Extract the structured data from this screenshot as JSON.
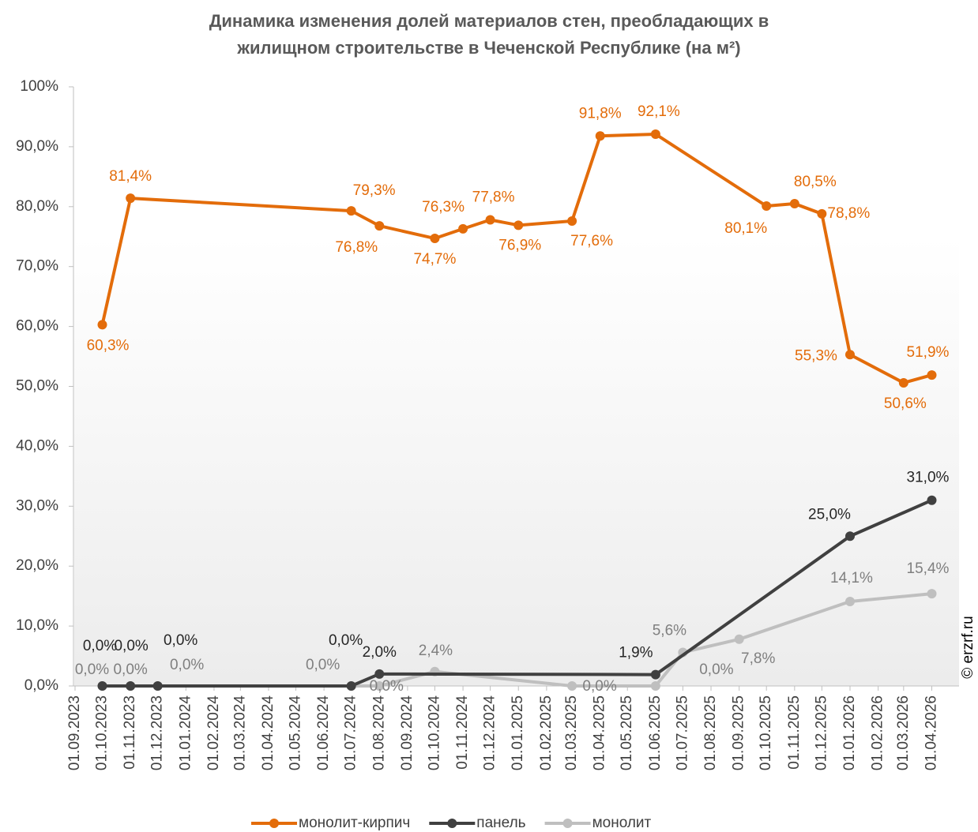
{
  "chart_data": {
    "type": "line",
    "title": "Динамика изменения долей материалов стен, преобладающих в",
    "subtitle": "жилищном строительстве в Чеченской Республике (на м²)",
    "xlim": [
      "01.09.2023",
      "01.05.2026"
    ],
    "xticks": [
      "01.09.2023",
      "01.10.2023",
      "01.11.2023",
      "01.12.2023",
      "01.01.2024",
      "01.02.2024",
      "01.03.2024",
      "01.04.2024",
      "01.05.2024",
      "01.06.2024",
      "01.07.2024",
      "01.08.2024",
      "01.09.2024",
      "01.10.2024",
      "01.11.2024",
      "01.12.2024",
      "01.01.2025",
      "01.02.2025",
      "01.03.2025",
      "01.04.2025",
      "01.05.2025",
      "01.06.2025",
      "01.07.2025",
      "01.08.2025",
      "01.09.2025",
      "01.10.2025",
      "01.11.2025",
      "01.12.2025",
      "01.01.2026",
      "01.02.2026",
      "01.03.2026",
      "01.04.2026"
    ],
    "ylim": [
      0,
      100
    ],
    "yticks": [
      {
        "value": 0,
        "label": "0,0%"
      },
      {
        "value": 10,
        "label": "10,0%"
      },
      {
        "value": 20,
        "label": "20,0%"
      },
      {
        "value": 30,
        "label": "30,0%"
      },
      {
        "value": 40,
        "label": "40,0%"
      },
      {
        "value": 50,
        "label": "50,0%"
      },
      {
        "value": 60,
        "label": "60,0%"
      },
      {
        "value": 70,
        "label": "70,0%"
      },
      {
        "value": 80,
        "label": "80,0%"
      },
      {
        "value": 90,
        "label": "90,0%"
      },
      {
        "value": 100,
        "label": "100%"
      }
    ],
    "grid": false,
    "legend": "bottom",
    "copyright": "© erzrf.ru",
    "series": [
      {
        "name": "монолит-кирпич",
        "color": "#e36c0a",
        "label_color": "#e36c0a",
        "x": [
          "01.10.2023",
          "01.11.2023",
          "01.07.2024",
          "01.08.2024",
          "01.10.2024",
          "01.11.2024",
          "01.12.2024",
          "01.01.2025",
          "01.03.2025",
          "01.04.2025",
          "01.06.2025",
          "01.10.2025",
          "01.11.2025",
          "01.12.2025",
          "01.01.2026",
          "01.03.2026",
          "01.04.2026"
        ],
        "values": [
          60.3,
          81.4,
          79.3,
          76.8,
          74.7,
          76.3,
          77.8,
          76.9,
          77.6,
          91.8,
          92.1,
          80.1,
          80.5,
          78.8,
          55.3,
          50.6,
          51.9
        ],
        "value_labels": [
          "60,3%",
          "81,4%",
          "79,3%",
          "76,8%",
          "74,7%",
          "76,3%",
          "77,8%",
          "76,9%",
          "77,6%",
          "91,8%",
          "92,1%",
          "80,1%",
          "80,5%",
          "78,8%",
          "55,3%",
          "50,6%",
          "51,9%"
        ]
      },
      {
        "name": "панель",
        "color": "#404040",
        "label_color": "#262626",
        "x": [
          "01.10.2023",
          "01.11.2023",
          "01.12.2023",
          "01.07.2024",
          "01.08.2024",
          "01.06.2025",
          "01.01.2026",
          "01.04.2026"
        ],
        "values": [
          0,
          0,
          0,
          0,
          2.0,
          1.9,
          25.0,
          31.0
        ],
        "value_labels": [
          "0,0%",
          "0,0%",
          "0,0%",
          "0,0%",
          "2,0%",
          "1,9%",
          "25,0%",
          "31,0%"
        ]
      },
      {
        "name": "монолит",
        "color": "#bfbfbf",
        "label_color": "#7f7f7f",
        "x": [
          "01.10.2023",
          "01.11.2023",
          "01.12.2023",
          "01.07.2024",
          "01.08.2024",
          "01.10.2024",
          "01.03.2025",
          "01.06.2025",
          "01.07.2025",
          "01.09.2025",
          "01.01.2026",
          "01.04.2026"
        ],
        "values": [
          0,
          0,
          0,
          0,
          0,
          2.4,
          0,
          0,
          5.6,
          7.8,
          14.1,
          15.4
        ],
        "value_labels": [
          "0,0%",
          "0,0%",
          "0,0%",
          "0,0%",
          "0,0%",
          "2,4%",
          "0,0%",
          "0,0%",
          "5,6%",
          "7,8%",
          "14,1%",
          "15,4%"
        ]
      }
    ]
  }
}
